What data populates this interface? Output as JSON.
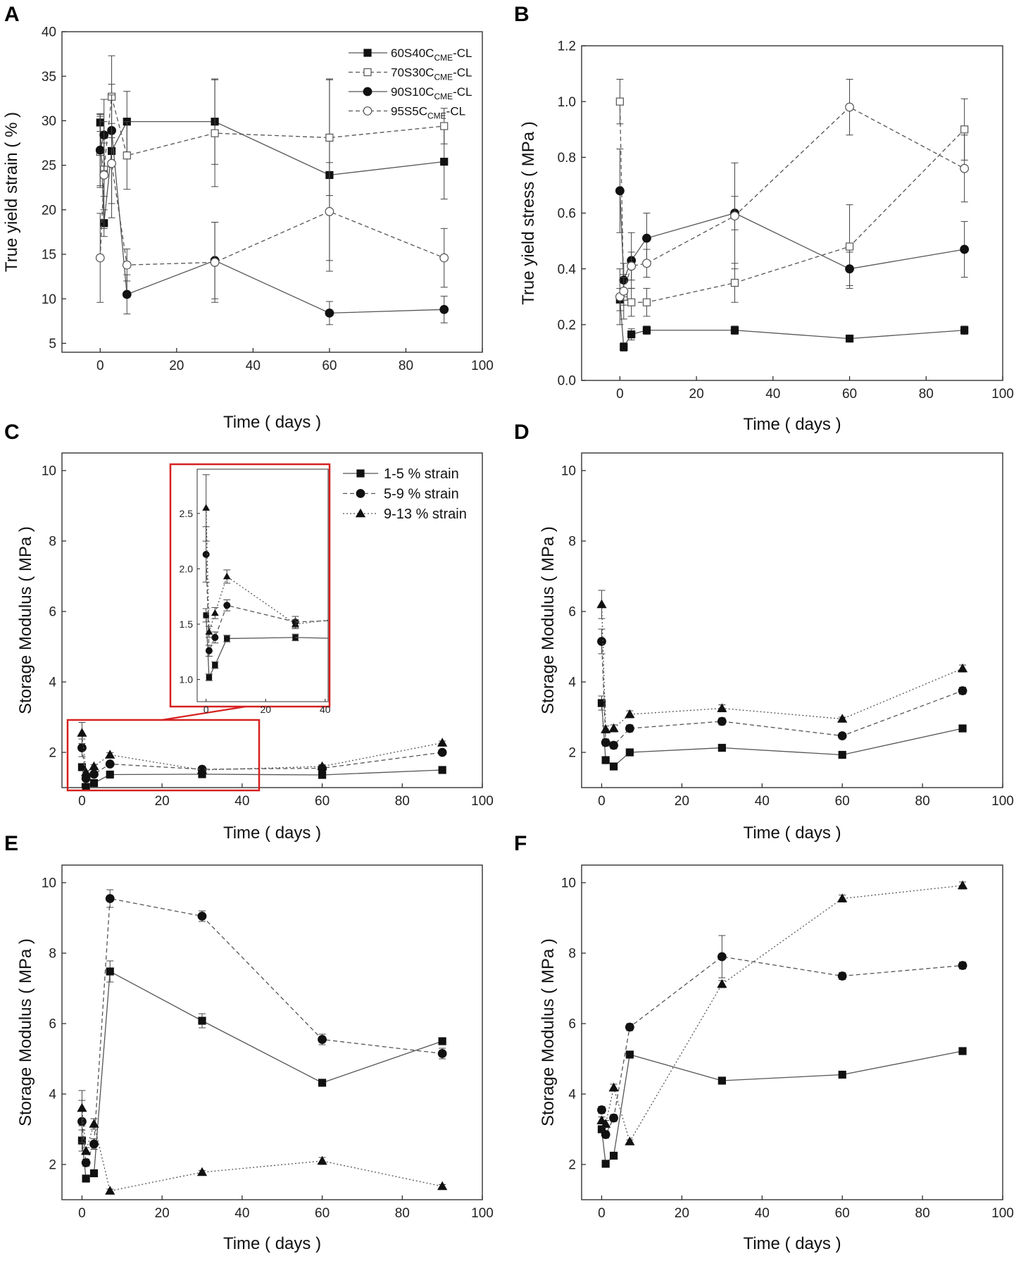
{
  "figure": {
    "panel_letters": [
      "A",
      "B",
      "C",
      "D",
      "E",
      "F"
    ]
  },
  "chart_data": [
    {
      "panel": "A",
      "type": "line",
      "title": "",
      "xlabel": "Time ( days )",
      "ylabel": "True yield strain ( % )",
      "xlim": [
        -10,
        100
      ],
      "ylim": [
        4,
        40
      ],
      "xticks": [
        0,
        20,
        40,
        60,
        80,
        100
      ],
      "yticks": [
        5,
        10,
        15,
        20,
        25,
        30,
        35,
        40
      ],
      "legend": "top-right",
      "grid": false,
      "series": [
        {
          "name": "60S40C",
          "sub": "CME",
          "suffix": "-CL",
          "marker": "square-filled",
          "dash": "solid",
          "x": [
            0,
            1,
            3,
            7,
            30,
            60,
            90
          ],
          "y": [
            29.8,
            18.5,
            26.6,
            29.9,
            29.9,
            23.9,
            25.4
          ],
          "err": [
            1.0,
            1.5,
            7.5,
            3.4,
            4.8,
            10.8,
            4.2
          ]
        },
        {
          "name": "70S30C",
          "sub": "CME",
          "suffix": "-CL",
          "marker": "square-open",
          "dash": "dashed",
          "x": [
            0,
            1,
            3,
            7,
            30,
            60,
            90
          ],
          "y": [
            26.5,
            24.5,
            32.7,
            26.1,
            28.6,
            28.1,
            29.4
          ],
          "err": [
            4.0,
            3.0,
            4.6,
            3.8,
            6.0,
            6.5,
            2.0
          ]
        },
        {
          "name": "90S10C",
          "sub": "CME",
          "suffix": "-CL",
          "marker": "circle-filled",
          "dash": "solid",
          "x": [
            0,
            1,
            3,
            7,
            30,
            60,
            90
          ],
          "y": [
            26.7,
            28.4,
            28.9,
            10.5,
            14.3,
            8.4,
            8.8
          ],
          "err": [
            4.0,
            4.0,
            4.0,
            2.2,
            4.3,
            1.3,
            1.5
          ]
        },
        {
          "name": "95S5C",
          "sub": "CME",
          "suffix": "-CL",
          "marker": "circle-open",
          "dash": "dashed",
          "x": [
            0,
            1,
            3,
            7,
            30,
            60,
            90
          ],
          "y": [
            14.6,
            23.9,
            25.2,
            13.8,
            14.1,
            19.8,
            14.6
          ],
          "err": [
            5.0,
            6.0,
            4.5,
            1.8,
            4.5,
            5.5,
            3.3
          ]
        }
      ]
    },
    {
      "panel": "B",
      "type": "line",
      "title": "",
      "xlabel": "Time ( days )",
      "ylabel": "True yield stress ( MPa )",
      "xlim": [
        -10,
        100
      ],
      "ylim": [
        0.0,
        1.2
      ],
      "xticks": [
        0,
        20,
        40,
        60,
        80,
        100
      ],
      "yticks": [
        "0.0",
        "0.2",
        "0.4",
        "0.6",
        "0.8",
        "1.0",
        "1.2"
      ],
      "legend": "none",
      "grid": false,
      "series": [
        {
          "name": "60S40C",
          "marker": "square-filled",
          "dash": "solid",
          "x": [
            0,
            1,
            3,
            7,
            30,
            60,
            90
          ],
          "y": [
            0.29,
            0.12,
            0.165,
            0.18,
            0.18,
            0.15,
            0.18
          ],
          "err": [
            0.04,
            0.015,
            0.02,
            0.015,
            0.015,
            0.01,
            0.015
          ]
        },
        {
          "name": "70S30C",
          "marker": "square-open",
          "dash": "dashed",
          "x": [
            0,
            1,
            3,
            7,
            30,
            60,
            90
          ],
          "y": [
            1.0,
            0.3,
            0.28,
            0.28,
            0.35,
            0.48,
            0.9
          ],
          "err": [
            0.08,
            0.08,
            0.05,
            0.05,
            0.07,
            0.15,
            0.11
          ]
        },
        {
          "name": "90S10C",
          "marker": "circle-filled",
          "dash": "solid",
          "x": [
            0,
            1,
            3,
            7,
            30,
            60,
            90
          ],
          "y": [
            0.68,
            0.36,
            0.43,
            0.51,
            0.6,
            0.4,
            0.47
          ],
          "err": [
            0.15,
            0.06,
            0.1,
            0.09,
            0.06,
            0.06,
            0.1
          ]
        },
        {
          "name": "95S5C",
          "marker": "circle-open",
          "dash": "dashed",
          "x": [
            0,
            1,
            3,
            7,
            30,
            60,
            90
          ],
          "y": [
            0.3,
            0.32,
            0.41,
            0.42,
            0.59,
            0.98,
            0.76
          ],
          "err": [
            0.1,
            0.05,
            0.05,
            0.05,
            0.19,
            0.1,
            0.12
          ]
        }
      ]
    },
    {
      "panel": "C",
      "type": "line",
      "title": "",
      "xlabel": "Time ( days )",
      "ylabel": "Storage Modulus ( MPa )",
      "xlim": [
        -5,
        100
      ],
      "ylim": [
        1,
        10.5
      ],
      "xticks": [
        0,
        20,
        40,
        60,
        80,
        100
      ],
      "yticks": [
        2,
        4,
        6,
        8,
        10
      ],
      "legend": "top-right",
      "grid": false,
      "series": [
        {
          "name": "1-5 % strain",
          "marker": "square",
          "dash": "solid",
          "x": [
            0,
            1,
            3,
            7,
            30,
            60,
            90
          ],
          "y": [
            1.58,
            1.02,
            1.13,
            1.37,
            1.38,
            1.36,
            1.5
          ],
          "err": [
            0.06,
            0.03,
            0.03,
            0.03,
            0.03,
            0.03,
            0.03
          ]
        },
        {
          "name": "5-9 % strain",
          "marker": "circle",
          "dash": "dashed",
          "x": [
            0,
            1,
            3,
            7,
            30,
            60,
            90
          ],
          "y": [
            2.13,
            1.26,
            1.38,
            1.67,
            1.52,
            1.55,
            2.0
          ],
          "err": [
            0.25,
            0.05,
            0.05,
            0.05,
            0.05,
            0.05,
            0.05
          ]
        },
        {
          "name": "9-13 % strain",
          "marker": "triangle",
          "dash": "dotted",
          "x": [
            0,
            1,
            3,
            7,
            30,
            60,
            90
          ],
          "y": [
            2.55,
            1.43,
            1.6,
            1.93,
            1.5,
            1.6,
            2.27
          ],
          "err": [
            0.3,
            0.05,
            0.05,
            0.06,
            0.04,
            0.05,
            0.05
          ]
        }
      ],
      "inset": {
        "xlim": [
          -3,
          41
        ],
        "ylim": [
          0.8,
          2.9
        ],
        "xticks": [
          0,
          20,
          40
        ],
        "yticks": [
          "1.0",
          "1.5",
          "2.0",
          "2.5"
        ]
      }
    },
    {
      "panel": "D",
      "type": "line",
      "title": "",
      "xlabel": "Time ( days )",
      "ylabel": "Storage Modulus ( MPa )",
      "xlim": [
        -5,
        100
      ],
      "ylim": [
        1,
        10.5
      ],
      "xticks": [
        0,
        20,
        40,
        60,
        80,
        100
      ],
      "yticks": [
        2,
        4,
        6,
        8,
        10
      ],
      "legend": "none",
      "grid": false,
      "series": [
        {
          "name": "1-5 % strain",
          "marker": "square",
          "dash": "solid",
          "x": [
            0,
            1,
            3,
            7,
            30,
            60,
            90
          ],
          "y": [
            3.4,
            1.78,
            1.6,
            2.0,
            2.13,
            1.93,
            2.68
          ],
          "err": [
            0.2,
            0.05,
            0.05,
            0.05,
            0.05,
            0.05,
            0.05
          ]
        },
        {
          "name": "5-9 % strain",
          "marker": "circle",
          "dash": "dashed",
          "x": [
            0,
            1,
            3,
            7,
            30,
            60,
            90
          ],
          "y": [
            5.15,
            2.28,
            2.2,
            2.68,
            2.88,
            2.47,
            3.75
          ],
          "err": [
            0.35,
            0.1,
            0.1,
            0.1,
            0.1,
            0.05,
            0.1
          ]
        },
        {
          "name": "9-13 % strain",
          "marker": "triangle",
          "dash": "dotted",
          "x": [
            0,
            1,
            3,
            7,
            30,
            60,
            90
          ],
          "y": [
            6.2,
            2.65,
            2.68,
            3.08,
            3.25,
            2.95,
            4.38
          ],
          "err": [
            0.4,
            0.1,
            0.1,
            0.1,
            0.1,
            0.05,
            0.1
          ]
        }
      ]
    },
    {
      "panel": "E",
      "type": "line",
      "title": "",
      "xlabel": "Time ( days )",
      "ylabel": "Storage Modulus ( MPa )",
      "xlim": [
        -5,
        100
      ],
      "ylim": [
        1,
        10.5
      ],
      "xticks": [
        0,
        20,
        40,
        60,
        80,
        100
      ],
      "yticks": [
        2,
        4,
        6,
        8,
        10
      ],
      "legend": "none",
      "grid": false,
      "series": [
        {
          "name": "1-5 % strain",
          "marker": "square",
          "dash": "solid",
          "x": [
            0,
            1,
            3,
            7,
            30,
            60,
            90
          ],
          "y": [
            2.68,
            1.6,
            1.75,
            7.48,
            6.08,
            4.32,
            5.5
          ],
          "err": [
            0.3,
            0.1,
            0.1,
            0.3,
            0.2,
            0.05,
            0.1
          ]
        },
        {
          "name": "5-9 % strain",
          "marker": "circle",
          "dash": "dashed",
          "x": [
            0,
            1,
            3,
            7,
            30,
            60,
            90
          ],
          "y": [
            3.22,
            2.05,
            2.58,
            9.55,
            9.05,
            5.55,
            5.15
          ],
          "err": [
            0.6,
            0.1,
            0.15,
            0.25,
            0.15,
            0.15,
            0.15
          ]
        },
        {
          "name": "9-13 % strain",
          "marker": "triangle",
          "dash": "dotted",
          "x": [
            0,
            1,
            3,
            7,
            30,
            60,
            90
          ],
          "y": [
            3.6,
            2.38,
            3.15,
            1.25,
            1.78,
            2.1,
            1.38
          ],
          "err": [
            0.5,
            0.1,
            0.15,
            0.05,
            0.05,
            0.1,
            0.05
          ]
        }
      ]
    },
    {
      "panel": "F",
      "type": "line",
      "title": "",
      "xlabel": "Time ( days )",
      "ylabel": "Storage Modulus ( MPa )",
      "xlim": [
        -5,
        100
      ],
      "ylim": [
        1,
        10.5
      ],
      "xticks": [
        0,
        20,
        40,
        60,
        80,
        100
      ],
      "yticks": [
        2,
        4,
        6,
        8,
        10
      ],
      "legend": "none",
      "grid": false,
      "series": [
        {
          "name": "1-5 % strain",
          "marker": "square",
          "dash": "solid",
          "x": [
            0,
            1,
            3,
            7,
            30,
            60,
            90
          ],
          "y": [
            3.0,
            2.02,
            2.25,
            5.12,
            4.38,
            4.55,
            5.22
          ],
          "err": [
            0.1,
            0.05,
            0.05,
            0.1,
            0.05,
            0.05,
            0.05
          ]
        },
        {
          "name": "5-9 % strain",
          "marker": "circle",
          "dash": "dashed",
          "x": [
            0,
            1,
            3,
            7,
            30,
            60,
            90
          ],
          "y": [
            3.55,
            2.85,
            3.32,
            5.9,
            7.9,
            7.35,
            7.65
          ],
          "err": [
            0.1,
            0.1,
            0.1,
            0.1,
            0.6,
            0.1,
            0.1
          ]
        },
        {
          "name": "9-13 % strain",
          "marker": "triangle",
          "dash": "dotted",
          "x": [
            0,
            1,
            3,
            7,
            30,
            60,
            90
          ],
          "y": [
            3.25,
            3.15,
            4.18,
            2.65,
            7.12,
            9.55,
            9.92
          ],
          "err": [
            0.1,
            0.1,
            0.1,
            0.05,
            0.1,
            0.1,
            0.1
          ]
        }
      ]
    }
  ]
}
